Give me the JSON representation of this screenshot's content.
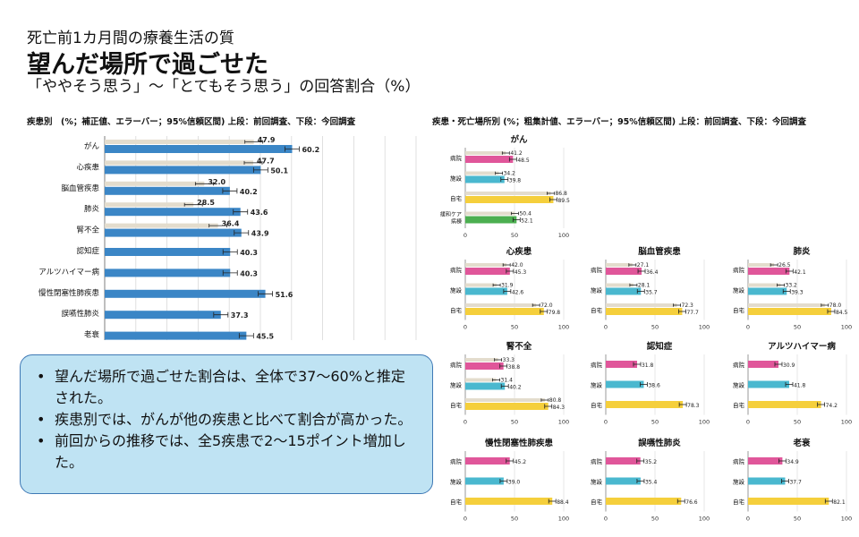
{
  "header": {
    "title_line1": "死亡前1カ月間の療養生活の質",
    "title_line2": "望んだ場所で過ごせた",
    "title_line3": "「ややそう思う」～「とてもそう思う」の回答割合（%）"
  },
  "left_subtitle": "疾患別　(%；補正値、エラーバー；95%信頼区間) 上段：前回調査、下段：今回調査",
  "right_subtitle": "疾患・死亡場所別 (%；粗集計値、エラーバー；95%信頼区間) 上段：前回調査、下段：今回調査",
  "colors": {
    "prev": "#e3dccd",
    "curr": "#3b86c6",
    "hospital": "#e0569a",
    "facility": "#4ab8cf",
    "home": "#f5cf3c",
    "palliative": "#4caf50",
    "note_bg": "#bfe3f3",
    "note_border": "#3f79b5"
  },
  "chart_data": [
    {
      "type": "bar",
      "orientation": "horizontal",
      "categories": [
        "がん",
        "心疾患",
        "脳血管疾患",
        "肺炎",
        "腎不全",
        "認知症",
        "アルツハイマー病",
        "慢性閉塞性肺疾患",
        "誤嚥性肺炎",
        "老衰"
      ],
      "series": [
        {
          "name": "前回調査",
          "values": [
            47.9,
            47.7,
            32.0,
            28.5,
            36.4,
            null,
            null,
            null,
            null,
            null
          ]
        },
        {
          "name": "今回調査",
          "values": [
            60.2,
            50.1,
            40.2,
            43.6,
            43.9,
            40.3,
            40.3,
            51.6,
            37.3,
            45.5
          ]
        }
      ],
      "xlim": [
        0,
        100
      ],
      "xticks": [
        0,
        10,
        20,
        30,
        40,
        50,
        60,
        70,
        80,
        90,
        100
      ],
      "grid": true
    },
    {
      "type": "bar",
      "orientation": "horizontal",
      "title": "がん",
      "categories": [
        "病院",
        "施設",
        "自宅",
        "緩和ケア病棟"
      ],
      "series": [
        {
          "name": "前回調査",
          "values": [
            41.2,
            34.2,
            86.8,
            50.4
          ]
        },
        {
          "name": "今回調査",
          "values": [
            48.5,
            39.8,
            89.5,
            52.1
          ]
        }
      ],
      "xlim": [
        0,
        100
      ],
      "xticks": [
        0,
        50,
        100
      ]
    },
    {
      "type": "bar",
      "orientation": "horizontal",
      "title": "心疾患",
      "categories": [
        "病院",
        "施設",
        "自宅"
      ],
      "series": [
        {
          "name": "前回調査",
          "values": [
            42.0,
            31.9,
            72.0
          ]
        },
        {
          "name": "今回調査",
          "values": [
            45.3,
            42.6,
            79.8
          ]
        }
      ],
      "xlim": [
        0,
        100
      ],
      "xticks": [
        0,
        50,
        100
      ]
    },
    {
      "type": "bar",
      "orientation": "horizontal",
      "title": "脳血管疾患",
      "categories": [
        "病院",
        "施設",
        "自宅"
      ],
      "series": [
        {
          "name": "前回調査",
          "values": [
            27.1,
            28.1,
            72.3
          ]
        },
        {
          "name": "今回調査",
          "values": [
            36.4,
            35.7,
            77.7
          ]
        }
      ],
      "xlim": [
        0,
        100
      ],
      "xticks": [
        0,
        50,
        100
      ]
    },
    {
      "type": "bar",
      "orientation": "horizontal",
      "title": "肺炎",
      "categories": [
        "病院",
        "施設",
        "自宅"
      ],
      "series": [
        {
          "name": "前回調査",
          "values": [
            26.5,
            33.2,
            78.0
          ]
        },
        {
          "name": "今回調査",
          "values": [
            42.1,
            39.3,
            84.5
          ]
        }
      ],
      "xlim": [
        0,
        100
      ],
      "xticks": [
        0,
        50,
        100
      ]
    },
    {
      "type": "bar",
      "orientation": "horizontal",
      "title": "腎不全",
      "categories": [
        "病院",
        "施設",
        "自宅"
      ],
      "series": [
        {
          "name": "前回調査",
          "values": [
            33.3,
            31.4,
            80.8
          ]
        },
        {
          "name": "今回調査",
          "values": [
            38.8,
            40.2,
            84.3
          ]
        }
      ],
      "xlim": [
        0,
        100
      ],
      "xticks": [
        0,
        50,
        100
      ]
    },
    {
      "type": "bar",
      "orientation": "horizontal",
      "title": "認知症",
      "categories": [
        "病院",
        "施設",
        "自宅"
      ],
      "series": [
        {
          "name": "今回調査",
          "values": [
            31.8,
            38.6,
            78.3
          ]
        }
      ],
      "xlim": [
        0,
        100
      ],
      "xticks": [
        0,
        50,
        100
      ]
    },
    {
      "type": "bar",
      "orientation": "horizontal",
      "title": "アルツハイマー病",
      "categories": [
        "病院",
        "施設",
        "自宅"
      ],
      "series": [
        {
          "name": "今回調査",
          "values": [
            30.9,
            41.8,
            74.2
          ]
        }
      ],
      "xlim": [
        0,
        100
      ],
      "xticks": [
        0,
        50,
        100
      ]
    },
    {
      "type": "bar",
      "orientation": "horizontal",
      "title": "慢性閉塞性肺疾患",
      "categories": [
        "病院",
        "施設",
        "自宅"
      ],
      "series": [
        {
          "name": "今回調査",
          "values": [
            45.2,
            39.0,
            88.4
          ]
        }
      ],
      "xlim": [
        0,
        100
      ],
      "xticks": [
        0,
        50,
        100
      ]
    },
    {
      "type": "bar",
      "orientation": "horizontal",
      "title": "誤嚥性肺炎",
      "categories": [
        "病院",
        "施設",
        "自宅"
      ],
      "series": [
        {
          "name": "今回調査",
          "values": [
            35.2,
            35.4,
            76.6
          ]
        }
      ],
      "xlim": [
        0,
        100
      ],
      "xticks": [
        0,
        50,
        100
      ]
    },
    {
      "type": "bar",
      "orientation": "horizontal",
      "title": "老衰",
      "categories": [
        "病院",
        "施設",
        "自宅"
      ],
      "series": [
        {
          "name": "今回調査",
          "values": [
            34.9,
            37.7,
            82.1
          ]
        }
      ],
      "xlim": [
        0,
        100
      ],
      "xticks": [
        0,
        50,
        100
      ]
    }
  ],
  "notes": [
    "望んだ場所で過ごせた割合は、全体で37～60%と推定された。",
    "疾患別では、がんが他の疾患と比べて割合が高かった。",
    "前回からの推移では、全5疾患で2～15ポイント増加した。"
  ]
}
